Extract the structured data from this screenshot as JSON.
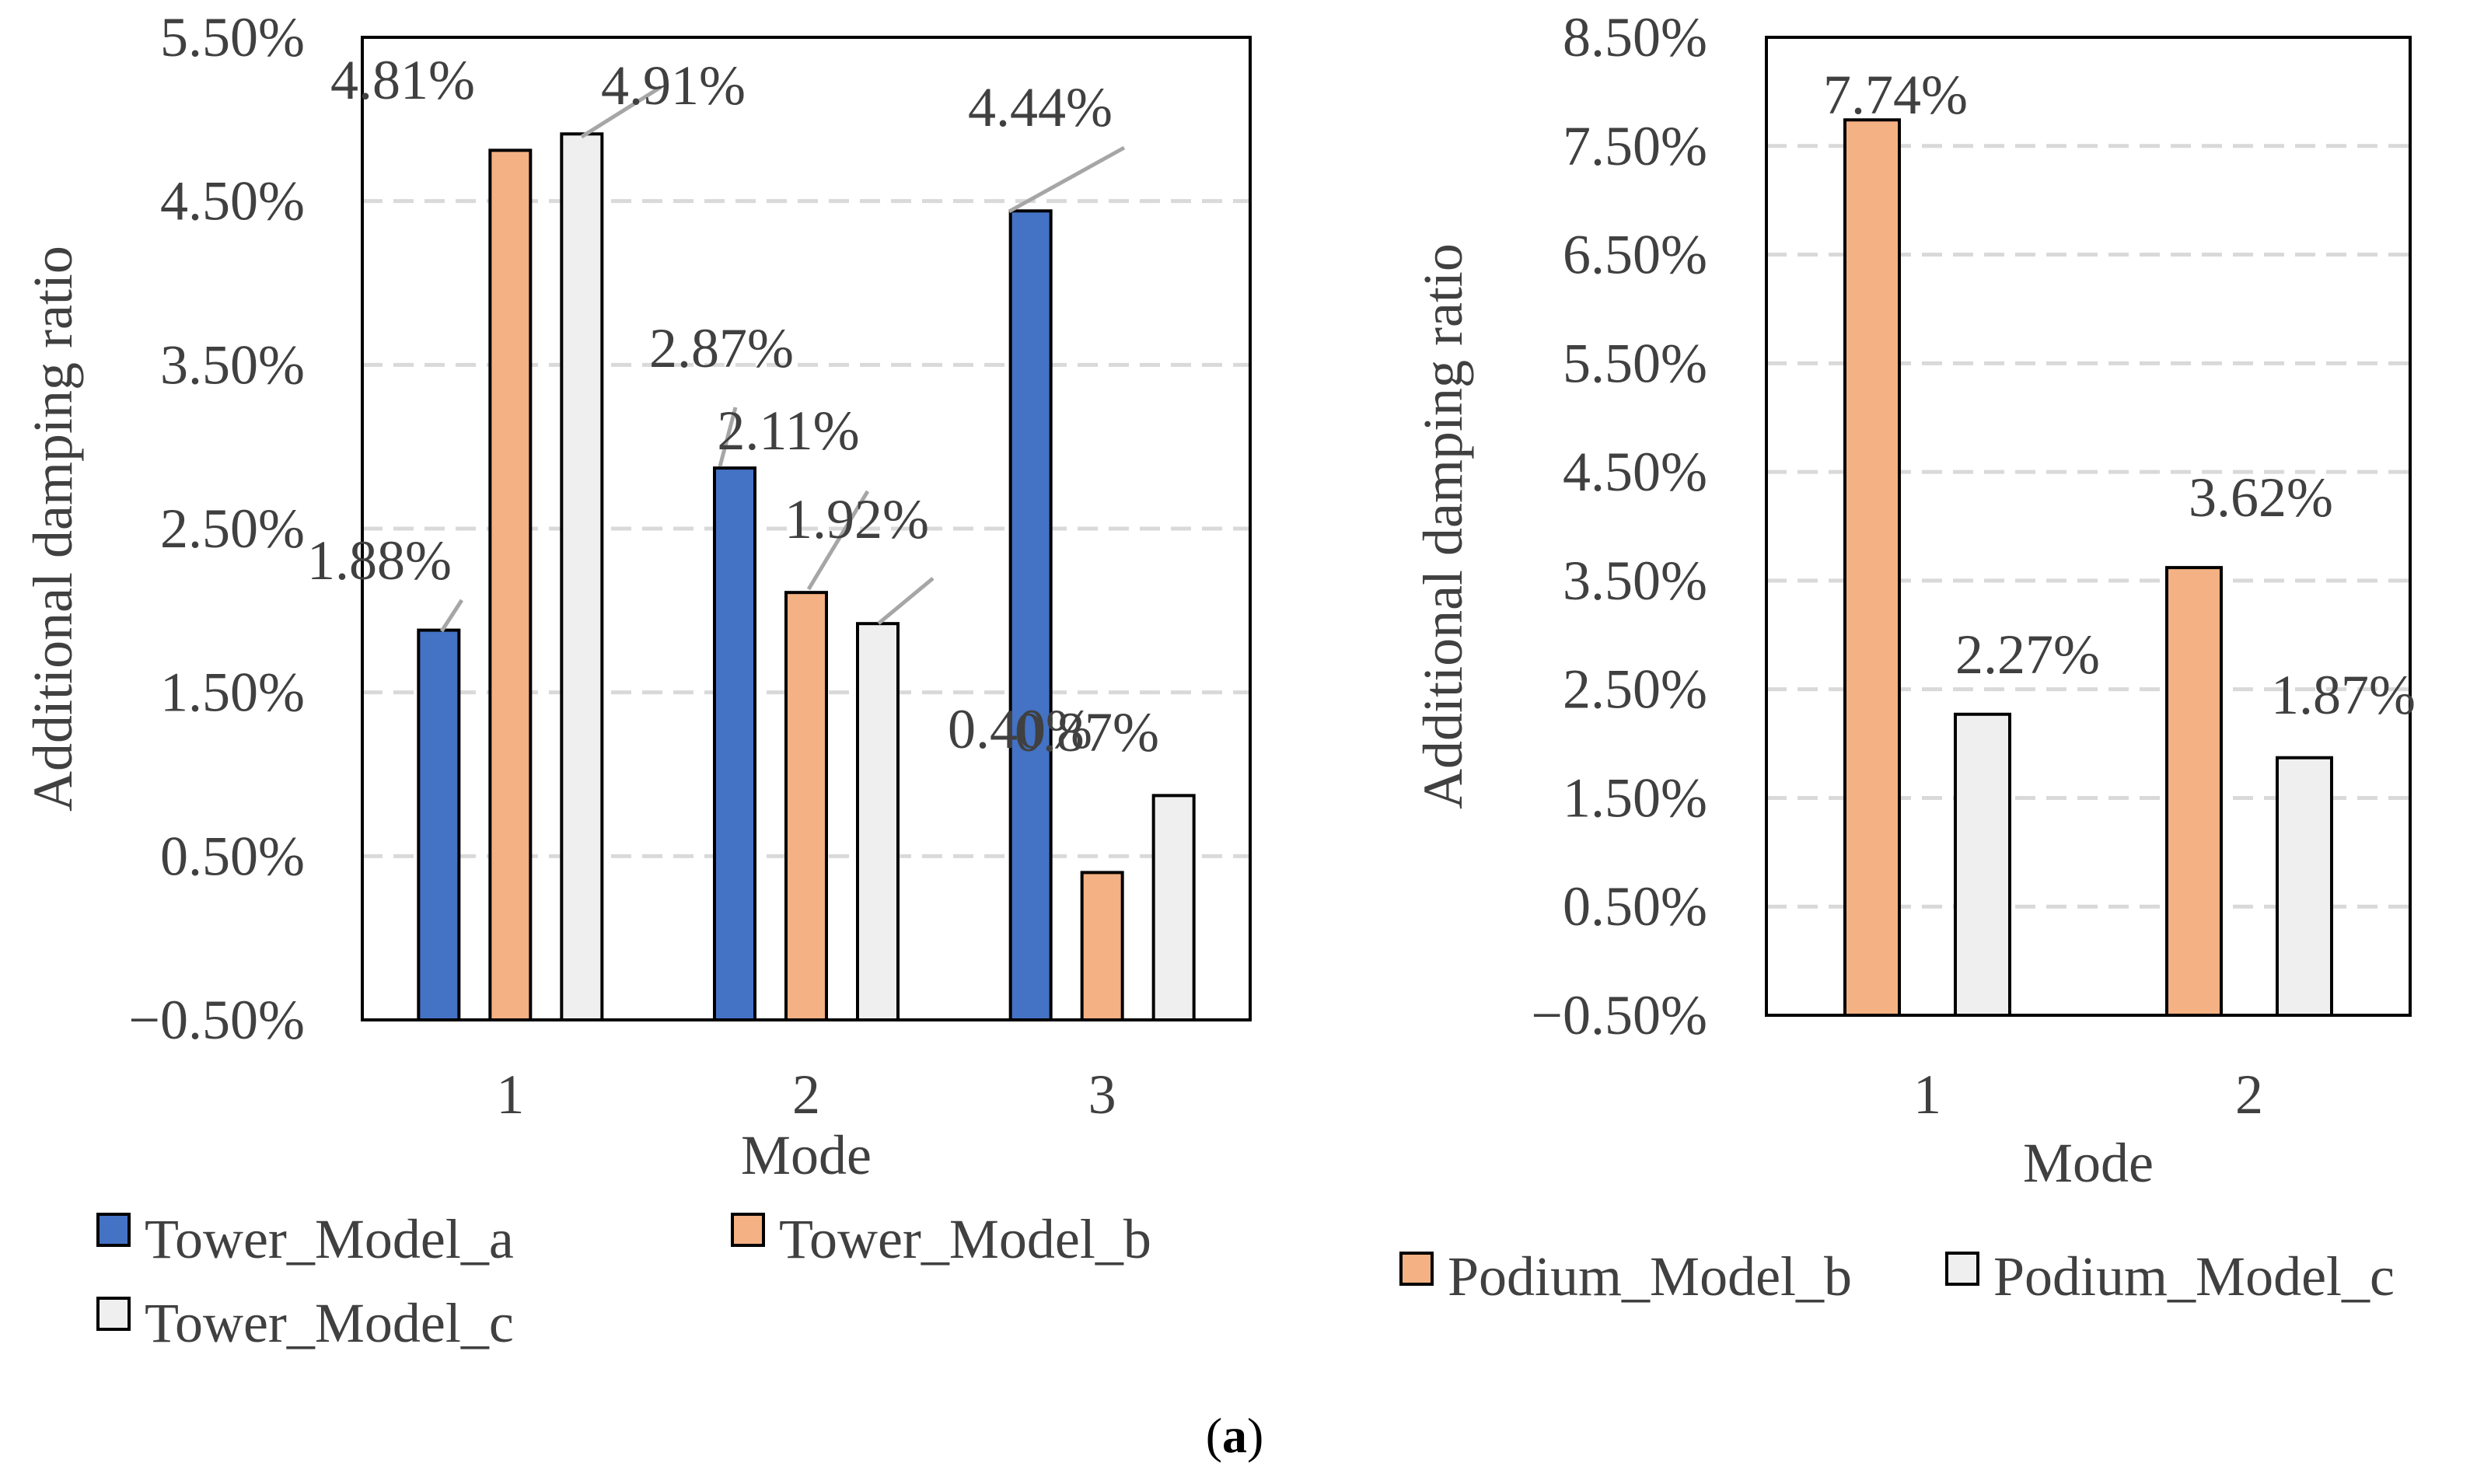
{
  "caption": {
    "open": "(",
    "letter": "a",
    "close": ")"
  },
  "colors": {
    "series_a": "#4472C4",
    "series_b": "#F4B183",
    "series_c": "#EFEFEF",
    "grid": "#D9D9D9",
    "leader": "#A6A6A6",
    "axis_text": "#404040"
  },
  "chart_data": [
    {
      "type": "bar",
      "categories": [
        "1",
        "2",
        "3"
      ],
      "series": [
        {
          "name": "Tower_Model_a",
          "values": [
            1.88,
            2.87,
            4.44
          ],
          "labels": [
            "1.88%",
            "2.87%",
            "4.44%"
          ]
        },
        {
          "name": "Tower_Model_b",
          "values": [
            4.81,
            2.11,
            0.4
          ],
          "labels": [
            "4.81%",
            "2.11%",
            "0.40%"
          ]
        },
        {
          "name": "Tower_Model_c",
          "values": [
            4.91,
            1.92,
            0.87
          ],
          "labels": [
            "4.91%",
            "1.92%",
            "0.87%"
          ]
        }
      ],
      "xlabel": "Mode",
      "ylabel": "Additional damping ratio",
      "ylim": [
        -0.5,
        5.5
      ],
      "yticks": [
        "−0.50%",
        "0.50%",
        "1.50%",
        "2.50%",
        "3.50%",
        "4.50%",
        "5.50%"
      ],
      "grid": true,
      "legend": "bottom"
    },
    {
      "type": "bar",
      "categories": [
        "1",
        "2"
      ],
      "series": [
        {
          "name": "Podium_Model_b",
          "values": [
            7.74,
            3.62
          ],
          "labels": [
            "7.74%",
            "3.62%"
          ]
        },
        {
          "name": "Podium_Model_c",
          "values": [
            2.27,
            1.87
          ],
          "labels": [
            "2.27%",
            "1.87%"
          ]
        }
      ],
      "xlabel": "Mode",
      "ylabel": "Additional damping ratio",
      "ylim": [
        -0.5,
        8.5
      ],
      "yticks": [
        "−0.50%",
        "0.50%",
        "1.50%",
        "2.50%",
        "3.50%",
        "4.50%",
        "5.50%",
        "6.50%",
        "7.50%",
        "8.50%"
      ],
      "grid": true,
      "legend": "bottom"
    }
  ]
}
